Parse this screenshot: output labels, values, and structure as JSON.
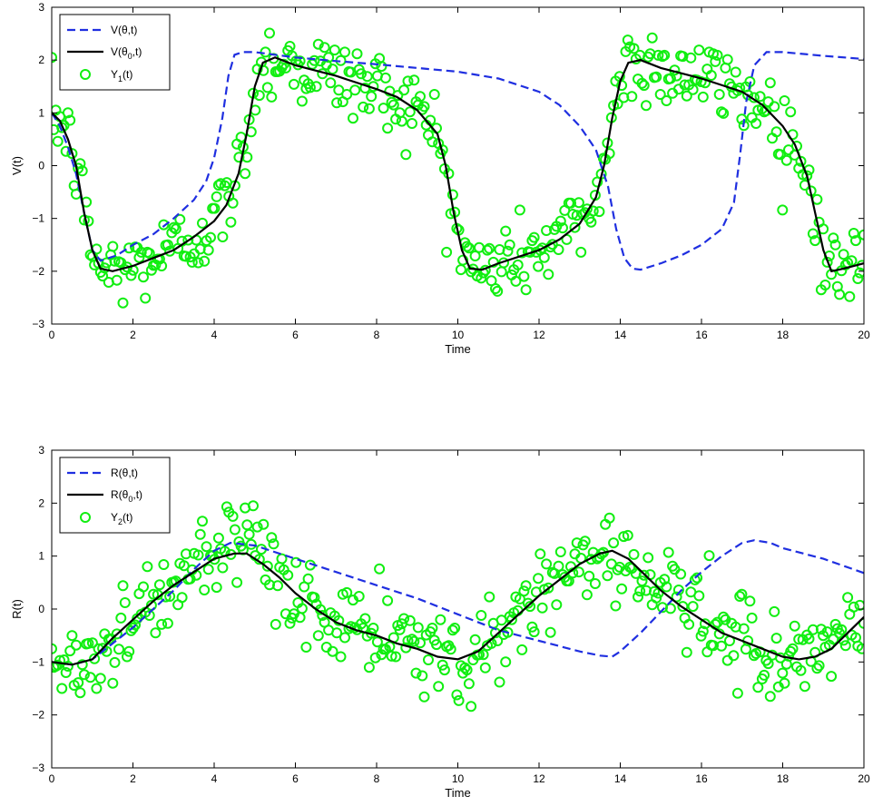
{
  "colors": {
    "model_line": "#1f2fe0",
    "true_line": "#000000",
    "observations": "#11ee11",
    "axes": "#000000"
  },
  "chart_data": [
    {
      "type": "line",
      "xlabel": "Time",
      "ylabel": "V(t)",
      "xlim": [
        0,
        20
      ],
      "ylim": [
        -3,
        3
      ],
      "xticks": [
        0,
        2,
        4,
        6,
        8,
        10,
        12,
        14,
        16,
        18,
        20
      ],
      "yticks": [
        -3,
        -2,
        -1,
        0,
        1,
        2,
        3
      ],
      "grid": false,
      "legend_position": "top-left",
      "legend": [
        {
          "base": "V(θ,t)",
          "sub": "",
          "rest": ""
        },
        {
          "base": "V(θ",
          "sub": "0",
          "rest": ",t)"
        },
        {
          "base": "Y",
          "sub": "1",
          "rest": "(t)"
        }
      ],
      "series": [
        {
          "style": "dashed",
          "x": [
            0,
            0.2,
            0.4,
            0.6,
            0.8,
            1.0,
            1.2,
            1.6,
            2.0,
            2.5,
            3.0,
            3.5,
            3.8,
            4.0,
            4.2,
            4.35,
            4.5,
            4.7,
            5.0,
            6.0,
            7.0,
            8.0,
            9.0,
            10.0,
            11.0,
            12.0,
            12.5,
            13.0,
            13.4,
            13.7,
            13.9,
            14.1,
            14.3,
            14.5,
            15.0,
            15.5,
            16.0,
            16.5,
            16.8,
            16.95,
            17.1,
            17.3,
            17.6,
            18.0,
            19.0,
            20.0
          ],
          "y": [
            1.0,
            0.75,
            0.35,
            -0.15,
            -0.9,
            -1.6,
            -1.8,
            -1.7,
            -1.5,
            -1.3,
            -1.0,
            -0.65,
            -0.3,
            0.15,
            0.9,
            1.7,
            2.1,
            2.15,
            2.15,
            2.05,
            1.98,
            1.92,
            1.85,
            1.78,
            1.65,
            1.4,
            1.15,
            0.75,
            0.3,
            -0.4,
            -1.2,
            -1.75,
            -1.95,
            -1.97,
            -1.85,
            -1.7,
            -1.5,
            -1.2,
            -0.7,
            0.2,
            1.2,
            1.9,
            2.15,
            2.15,
            2.08,
            2.02
          ]
        },
        {
          "style": "solid",
          "x": [
            0,
            0.2,
            0.4,
            0.6,
            0.8,
            1.0,
            1.2,
            1.5,
            2.0,
            2.5,
            3.0,
            3.5,
            4.0,
            4.3,
            4.6,
            4.8,
            5.0,
            5.2,
            5.5,
            6.0,
            7.0,
            8.0,
            8.5,
            9.0,
            9.5,
            9.7,
            9.9,
            10.1,
            10.3,
            10.6,
            11.0,
            12.0,
            12.5,
            13.0,
            13.4,
            13.6,
            13.8,
            14.0,
            14.2,
            14.5,
            15.0,
            16.0,
            17.0,
            17.5,
            18.0,
            18.3,
            18.6,
            18.8,
            19.0,
            19.2,
            19.5,
            20.0
          ],
          "y": [
            1.0,
            0.85,
            0.5,
            0.0,
            -0.9,
            -1.6,
            -1.95,
            -2.0,
            -1.9,
            -1.75,
            -1.6,
            -1.35,
            -1.05,
            -0.75,
            -0.15,
            0.6,
            1.5,
            1.95,
            2.05,
            1.9,
            1.7,
            1.45,
            1.3,
            1.05,
            0.6,
            0.0,
            -0.9,
            -1.6,
            -1.95,
            -1.97,
            -1.85,
            -1.6,
            -1.4,
            -1.1,
            -0.6,
            0.0,
            0.9,
            1.6,
            1.95,
            2.0,
            1.85,
            1.65,
            1.4,
            1.15,
            0.75,
            0.4,
            -0.2,
            -0.9,
            -1.6,
            -2.0,
            -1.95,
            -1.85
          ]
        },
        {
          "style": "markers",
          "x": [],
          "y": []
        }
      ]
    },
    {
      "type": "line",
      "xlabel": "Time",
      "ylabel": "R(t)",
      "xlim": [
        0,
        20
      ],
      "ylim": [
        -3,
        3
      ],
      "xticks": [
        0,
        2,
        4,
        6,
        8,
        10,
        12,
        14,
        16,
        18,
        20
      ],
      "yticks": [
        -3,
        -2,
        -1,
        0,
        1,
        2,
        3
      ],
      "grid": false,
      "legend_position": "top-left",
      "legend": [
        {
          "base": "R(θ,t)",
          "sub": "",
          "rest": ""
        },
        {
          "base": "R(θ",
          "sub": "0",
          "rest": ",t)"
        },
        {
          "base": "Y",
          "sub": "2",
          "rest": "(t)"
        }
      ],
      "series": [
        {
          "style": "dashed",
          "x": [
            0,
            0.5,
            1.0,
            2.0,
            3.0,
            3.5,
            4.0,
            4.4,
            5.0,
            6.0,
            7.0,
            8.0,
            9.0,
            10.0,
            11.0,
            12.0,
            13.0,
            13.5,
            13.8,
            14.0,
            14.5,
            15.0,
            15.5,
            16.0,
            16.5,
            17.0,
            17.3,
            17.7,
            18.0,
            19.0,
            20.0
          ],
          "y": [
            -1.0,
            -1.05,
            -0.95,
            -0.35,
            0.35,
            0.75,
            1.1,
            1.25,
            1.2,
            0.95,
            0.7,
            0.45,
            0.2,
            -0.1,
            -0.4,
            -0.6,
            -0.8,
            -0.88,
            -0.9,
            -0.8,
            -0.45,
            -0.05,
            0.35,
            0.7,
            1.0,
            1.25,
            1.3,
            1.25,
            1.15,
            0.95,
            0.68
          ]
        },
        {
          "style": "solid",
          "x": [
            0,
            0.5,
            1.0,
            1.5,
            2.0,
            2.5,
            3.0,
            3.5,
            4.0,
            4.5,
            4.8,
            5.2,
            5.6,
            6.0,
            6.5,
            7.0,
            7.5,
            8.0,
            8.5,
            9.0,
            9.5,
            10.0,
            10.5,
            11.0,
            11.5,
            12.0,
            12.5,
            13.0,
            13.5,
            13.8,
            14.2,
            14.6,
            15.0,
            15.5,
            16.0,
            16.5,
            17.0,
            17.5,
            18.0,
            18.4,
            18.8,
            19.2,
            19.6,
            20.0
          ],
          "y": [
            -1.0,
            -1.05,
            -0.95,
            -0.55,
            -0.2,
            0.15,
            0.45,
            0.7,
            0.95,
            1.05,
            1.05,
            0.85,
            0.6,
            0.3,
            0.0,
            -0.25,
            -0.4,
            -0.5,
            -0.65,
            -0.75,
            -0.9,
            -0.95,
            -0.8,
            -0.45,
            -0.1,
            0.25,
            0.55,
            0.85,
            1.05,
            1.1,
            0.95,
            0.65,
            0.35,
            0.05,
            -0.2,
            -0.45,
            -0.6,
            -0.75,
            -0.9,
            -0.95,
            -0.9,
            -0.75,
            -0.45,
            -0.15
          ]
        },
        {
          "style": "markers",
          "x": [],
          "y": []
        }
      ]
    }
  ]
}
